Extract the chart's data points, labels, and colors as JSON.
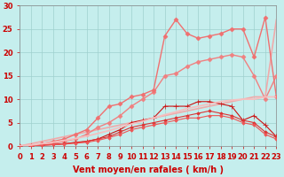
{
  "title": "",
  "xlabel": "Vent moyen/en rafales ( km/h )",
  "ylabel": "",
  "background_color": "#c5eeed",
  "grid_color": "#9fd0ce",
  "x": [
    0,
    1,
    2,
    3,
    4,
    5,
    6,
    7,
    8,
    9,
    10,
    11,
    12,
    13,
    14,
    15,
    16,
    17,
    18,
    19,
    20,
    21,
    22,
    23
  ],
  "lines": [
    {
      "y": [
        0,
        0.5,
        1.0,
        1.5,
        2.0,
        2.5,
        3.0,
        3.5,
        4.0,
        4.5,
        5.0,
        5.5,
        6.0,
        6.5,
        7.0,
        7.5,
        8.0,
        8.5,
        9.0,
        9.5,
        10.0,
        10.5,
        10.5,
        27.0
      ],
      "color": "#f0aaaa",
      "marker": null,
      "lw": 1.2
    },
    {
      "y": [
        0,
        0,
        0.3,
        0.5,
        1.0,
        1.5,
        2.5,
        4.0,
        5.0,
        6.5,
        8.5,
        10.0,
        11.5,
        15.0,
        15.5,
        17.0,
        18.0,
        18.5,
        19.0,
        19.5,
        19.0,
        15.0,
        10.0,
        15.0
      ],
      "color": "#f08080",
      "marker": "D",
      "ms": 2.5,
      "lw": 1.0
    },
    {
      "y": [
        0,
        0,
        0.5,
        1.0,
        1.5,
        2.5,
        3.5,
        6.0,
        8.5,
        9.0,
        10.5,
        11.0,
        12.0,
        23.5,
        27.0,
        24.0,
        23.0,
        23.5,
        24.0,
        25.0,
        25.0,
        19.0,
        27.5,
        10.5
      ],
      "color": "#f07070",
      "marker": "D",
      "ms": 2.5,
      "lw": 1.0
    },
    {
      "y": [
        0,
        0,
        0.2,
        0.3,
        0.5,
        0.8,
        1.0,
        1.5,
        2.5,
        3.5,
        5.0,
        5.5,
        6.0,
        8.5,
        8.5,
        8.5,
        9.5,
        9.5,
        9.0,
        8.5,
        5.5,
        6.5,
        4.5,
        2.0
      ],
      "color": "#cc1111",
      "marker": "+",
      "ms": 4,
      "lw": 0.8
    },
    {
      "y": [
        0,
        0,
        0.2,
        0.3,
        0.5,
        0.7,
        1.0,
        1.5,
        2.0,
        3.0,
        4.0,
        4.5,
        5.0,
        5.5,
        6.0,
        6.5,
        7.0,
        7.5,
        7.0,
        6.5,
        5.5,
        5.0,
        3.0,
        2.0
      ],
      "color": "#dd3333",
      "marker": "D",
      "ms": 1.8,
      "lw": 0.8
    },
    {
      "y": [
        0,
        0,
        0.2,
        0.3,
        0.4,
        0.6,
        0.8,
        1.2,
        1.8,
        2.5,
        3.5,
        4.0,
        4.5,
        5.0,
        5.5,
        6.0,
        6.0,
        6.5,
        6.5,
        6.0,
        5.0,
        4.5,
        2.5,
        1.5
      ],
      "color": "#ee5555",
      "marker": "D",
      "ms": 1.8,
      "lw": 0.8
    },
    {
      "y": [
        0,
        0.2,
        0.5,
        0.8,
        1.2,
        1.6,
        2.1,
        2.7,
        3.3,
        4.0,
        4.7,
        5.3,
        6.0,
        6.7,
        7.3,
        8.0,
        8.5,
        9.0,
        9.5,
        9.8,
        10.0,
        10.0,
        10.5,
        10.5
      ],
      "color": "#f5c0c0",
      "marker": null,
      "lw": 1.3
    }
  ],
  "ylim": [
    0,
    30
  ],
  "xlim": [
    0,
    23
  ],
  "yticks": [
    0,
    5,
    10,
    15,
    20,
    25,
    30
  ],
  "xticks": [
    0,
    1,
    2,
    3,
    4,
    5,
    6,
    7,
    8,
    9,
    10,
    11,
    12,
    13,
    14,
    15,
    16,
    17,
    18,
    19,
    20,
    21,
    22,
    23
  ],
  "tick_color": "#cc0000",
  "label_color": "#cc0000",
  "axis_color": "#888888",
  "xlabel_fontsize": 7,
  "tick_fontsize": 6
}
